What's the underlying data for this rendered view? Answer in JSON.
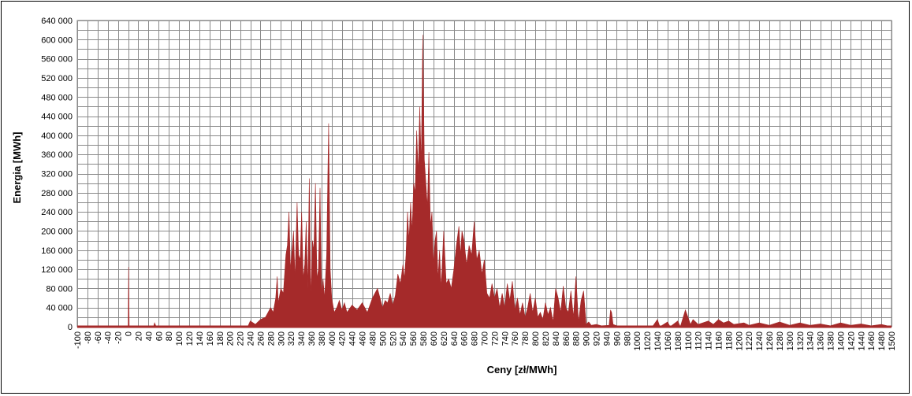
{
  "chart_data": {
    "type": "area",
    "title": "",
    "xlabel": "Ceny [zł/MWh]",
    "ylabel": "Energia [MWh]",
    "xlim": [
      -100,
      1500
    ],
    "ylim": [
      0,
      640000
    ],
    "x_ticks": [
      "-100",
      "-80",
      "-60",
      "-40",
      "-20",
      "0",
      "20",
      "40",
      "60",
      "80",
      "100",
      "120",
      "140",
      "160",
      "180",
      "200",
      "220",
      "240",
      "260",
      "280",
      "300",
      "320",
      "340",
      "360",
      "380",
      "400",
      "420",
      "440",
      "460",
      "480",
      "500",
      "520",
      "540",
      "560",
      "580",
      "600",
      "620",
      "640",
      "660",
      "680",
      "700",
      "720",
      "740",
      "760",
      "780",
      "800",
      "820",
      "840",
      "860",
      "880",
      "900",
      "920",
      "940",
      "960",
      "980",
      "1000",
      "1020",
      "1040",
      "1060",
      "1080",
      "1100",
      "1120",
      "1140",
      "1160",
      "1180",
      "1200",
      "1220",
      "1240",
      "1260",
      "1280",
      "1300",
      "1320",
      "1340",
      "1360",
      "1380",
      "1400",
      "1420",
      "1440",
      "1460",
      "1480",
      "1500"
    ],
    "y_ticks": [
      "0",
      "40 000",
      "80 000",
      "120 000",
      "160 000",
      "200 000",
      "240 000",
      "280 000",
      "320 000",
      "360 000",
      "400 000",
      "440 000",
      "480 000",
      "520 000",
      "560 000",
      "600 000",
      "640 000"
    ],
    "grid": true,
    "series": [
      {
        "color": "#a52a2a",
        "points": [
          [
            -100,
            0
          ],
          [
            0,
            0
          ],
          [
            1,
            125000
          ],
          [
            2,
            0
          ],
          [
            50,
            0
          ],
          [
            52,
            8000
          ],
          [
            55,
            0
          ],
          [
            235,
            0
          ],
          [
            240,
            12000
          ],
          [
            250,
            5000
          ],
          [
            260,
            15000
          ],
          [
            270,
            20000
          ],
          [
            280,
            40000
          ],
          [
            285,
            30000
          ],
          [
            290,
            60000
          ],
          [
            293,
            105000
          ],
          [
            295,
            50000
          ],
          [
            300,
            80000
          ],
          [
            305,
            70000
          ],
          [
            310,
            150000
          ],
          [
            313,
            170000
          ],
          [
            316,
            240000
          ],
          [
            319,
            120000
          ],
          [
            322,
            160000
          ],
          [
            325,
            200000
          ],
          [
            328,
            100000
          ],
          [
            332,
            260000
          ],
          [
            335,
            150000
          ],
          [
            338,
            140000
          ],
          [
            341,
            240000
          ],
          [
            344,
            100000
          ],
          [
            347,
            130000
          ],
          [
            350,
            220000
          ],
          [
            353,
            80000
          ],
          [
            356,
            310000
          ],
          [
            359,
            60000
          ],
          [
            362,
            180000
          ],
          [
            365,
            160000
          ],
          [
            368,
            300000
          ],
          [
            371,
            100000
          ],
          [
            374,
            120000
          ],
          [
            377,
            290000
          ],
          [
            380,
            70000
          ],
          [
            383,
            100000
          ],
          [
            386,
            60000
          ],
          [
            390,
            150000
          ],
          [
            394,
            425000
          ],
          [
            397,
            120000
          ],
          [
            400,
            60000
          ],
          [
            405,
            30000
          ],
          [
            410,
            40000
          ],
          [
            415,
            55000
          ],
          [
            420,
            35000
          ],
          [
            425,
            50000
          ],
          [
            430,
            30000
          ],
          [
            440,
            45000
          ],
          [
            450,
            35000
          ],
          [
            460,
            50000
          ],
          [
            470,
            30000
          ],
          [
            480,
            60000
          ],
          [
            490,
            80000
          ],
          [
            500,
            40000
          ],
          [
            505,
            55000
          ],
          [
            510,
            50000
          ],
          [
            515,
            70000
          ],
          [
            520,
            45000
          ],
          [
            525,
            65000
          ],
          [
            530,
            110000
          ],
          [
            535,
            90000
          ],
          [
            540,
            130000
          ],
          [
            543,
            100000
          ],
          [
            546,
            150000
          ],
          [
            549,
            240000
          ],
          [
            552,
            180000
          ],
          [
            555,
            260000
          ],
          [
            558,
            200000
          ],
          [
            561,
            300000
          ],
          [
            564,
            280000
          ],
          [
            567,
            410000
          ],
          [
            570,
            320000
          ],
          [
            573,
            460000
          ],
          [
            576,
            340000
          ],
          [
            579,
            610000
          ],
          [
            582,
            350000
          ],
          [
            585,
            300000
          ],
          [
            588,
            250000
          ],
          [
            591,
            365000
          ],
          [
            594,
            210000
          ],
          [
            597,
            240000
          ],
          [
            600,
            130000
          ],
          [
            603,
            180000
          ],
          [
            606,
            200000
          ],
          [
            609,
            100000
          ],
          [
            612,
            160000
          ],
          [
            615,
            80000
          ],
          [
            620,
            200000
          ],
          [
            625,
            90000
          ],
          [
            630,
            100000
          ],
          [
            635,
            80000
          ],
          [
            640,
            120000
          ],
          [
            645,
            170000
          ],
          [
            650,
            210000
          ],
          [
            653,
            150000
          ],
          [
            656,
            200000
          ],
          [
            660,
            180000
          ],
          [
            665,
            130000
          ],
          [
            670,
            170000
          ],
          [
            675,
            150000
          ],
          [
            680,
            220000
          ],
          [
            685,
            140000
          ],
          [
            690,
            160000
          ],
          [
            695,
            110000
          ],
          [
            700,
            140000
          ],
          [
            705,
            70000
          ],
          [
            710,
            60000
          ],
          [
            715,
            90000
          ],
          [
            720,
            60000
          ],
          [
            725,
            80000
          ],
          [
            730,
            40000
          ],
          [
            735,
            70000
          ],
          [
            740,
            40000
          ],
          [
            745,
            90000
          ],
          [
            750,
            55000
          ],
          [
            755,
            95000
          ],
          [
            760,
            35000
          ],
          [
            765,
            60000
          ],
          [
            770,
            25000
          ],
          [
            775,
            50000
          ],
          [
            780,
            20000
          ],
          [
            785,
            40000
          ],
          [
            790,
            70000
          ],
          [
            795,
            30000
          ],
          [
            800,
            60000
          ],
          [
            805,
            20000
          ],
          [
            810,
            30000
          ],
          [
            815,
            15000
          ],
          [
            820,
            50000
          ],
          [
            825,
            25000
          ],
          [
            830,
            40000
          ],
          [
            835,
            10000
          ],
          [
            840,
            80000
          ],
          [
            845,
            60000
          ],
          [
            850,
            30000
          ],
          [
            855,
            85000
          ],
          [
            860,
            40000
          ],
          [
            865,
            30000
          ],
          [
            870,
            75000
          ],
          [
            875,
            20000
          ],
          [
            880,
            105000
          ],
          [
            885,
            10000
          ],
          [
            890,
            55000
          ],
          [
            895,
            75000
          ],
          [
            900,
            5000
          ],
          [
            905,
            10000
          ],
          [
            910,
            3000
          ],
          [
            920,
            5000
          ],
          [
            930,
            2000
          ],
          [
            945,
            3000
          ],
          [
            948,
            35000
          ],
          [
            950,
            30000
          ],
          [
            953,
            5000
          ],
          [
            960,
            2000
          ],
          [
            1000,
            0
          ],
          [
            1030,
            0
          ],
          [
            1040,
            15000
          ],
          [
            1045,
            0
          ],
          [
            1060,
            10000
          ],
          [
            1065,
            0
          ],
          [
            1080,
            12000
          ],
          [
            1085,
            0
          ],
          [
            1095,
            35000
          ],
          [
            1100,
            20000
          ],
          [
            1105,
            5000
          ],
          [
            1110,
            15000
          ],
          [
            1115,
            10000
          ],
          [
            1120,
            5000
          ],
          [
            1140,
            12000
          ],
          [
            1150,
            5000
          ],
          [
            1160,
            15000
          ],
          [
            1170,
            8000
          ],
          [
            1180,
            12000
          ],
          [
            1190,
            5000
          ],
          [
            1210,
            8000
          ],
          [
            1220,
            3000
          ],
          [
            1240,
            8000
          ],
          [
            1260,
            3000
          ],
          [
            1280,
            10000
          ],
          [
            1300,
            3000
          ],
          [
            1320,
            8000
          ],
          [
            1340,
            3000
          ],
          [
            1360,
            6000
          ],
          [
            1380,
            2000
          ],
          [
            1400,
            8000
          ],
          [
            1420,
            3000
          ],
          [
            1440,
            6000
          ],
          [
            1460,
            2000
          ],
          [
            1480,
            5000
          ],
          [
            1500,
            0
          ]
        ]
      }
    ]
  }
}
